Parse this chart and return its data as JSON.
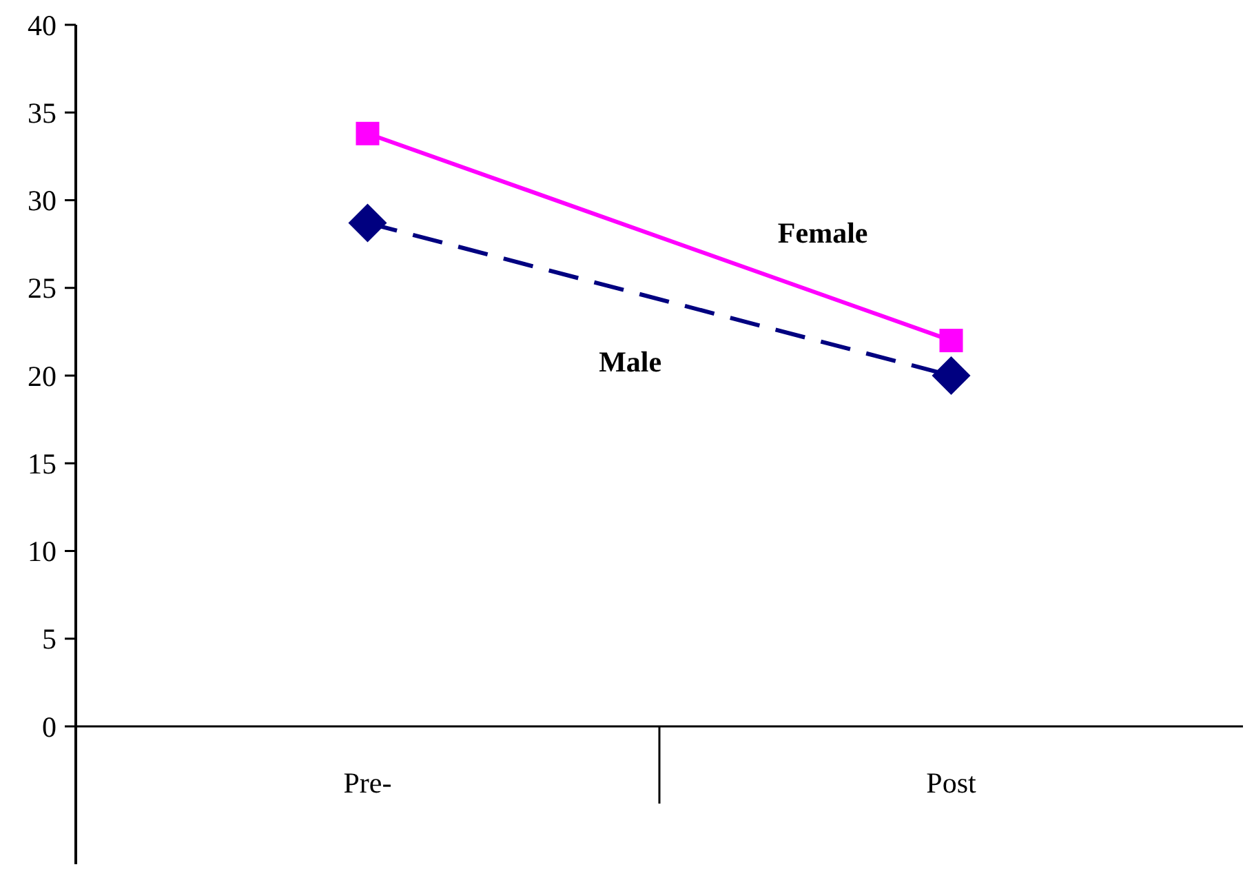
{
  "chart_data": {
    "type": "line",
    "categories": [
      "Pre-",
      "Post"
    ],
    "series": [
      {
        "name": "Female",
        "color": "#ff00ff",
        "values": [
          33.8,
          22.0
        ],
        "marker": "square",
        "line_style": "solid"
      },
      {
        "name": "Male",
        "color": "#000080",
        "values": [
          28.7,
          20.0
        ],
        "marker": "diamond",
        "line_style": "dashed"
      }
    ],
    "ylim": [
      0,
      40
    ],
    "yticks": [
      0,
      5,
      10,
      15,
      20,
      25,
      30,
      35,
      40
    ]
  }
}
